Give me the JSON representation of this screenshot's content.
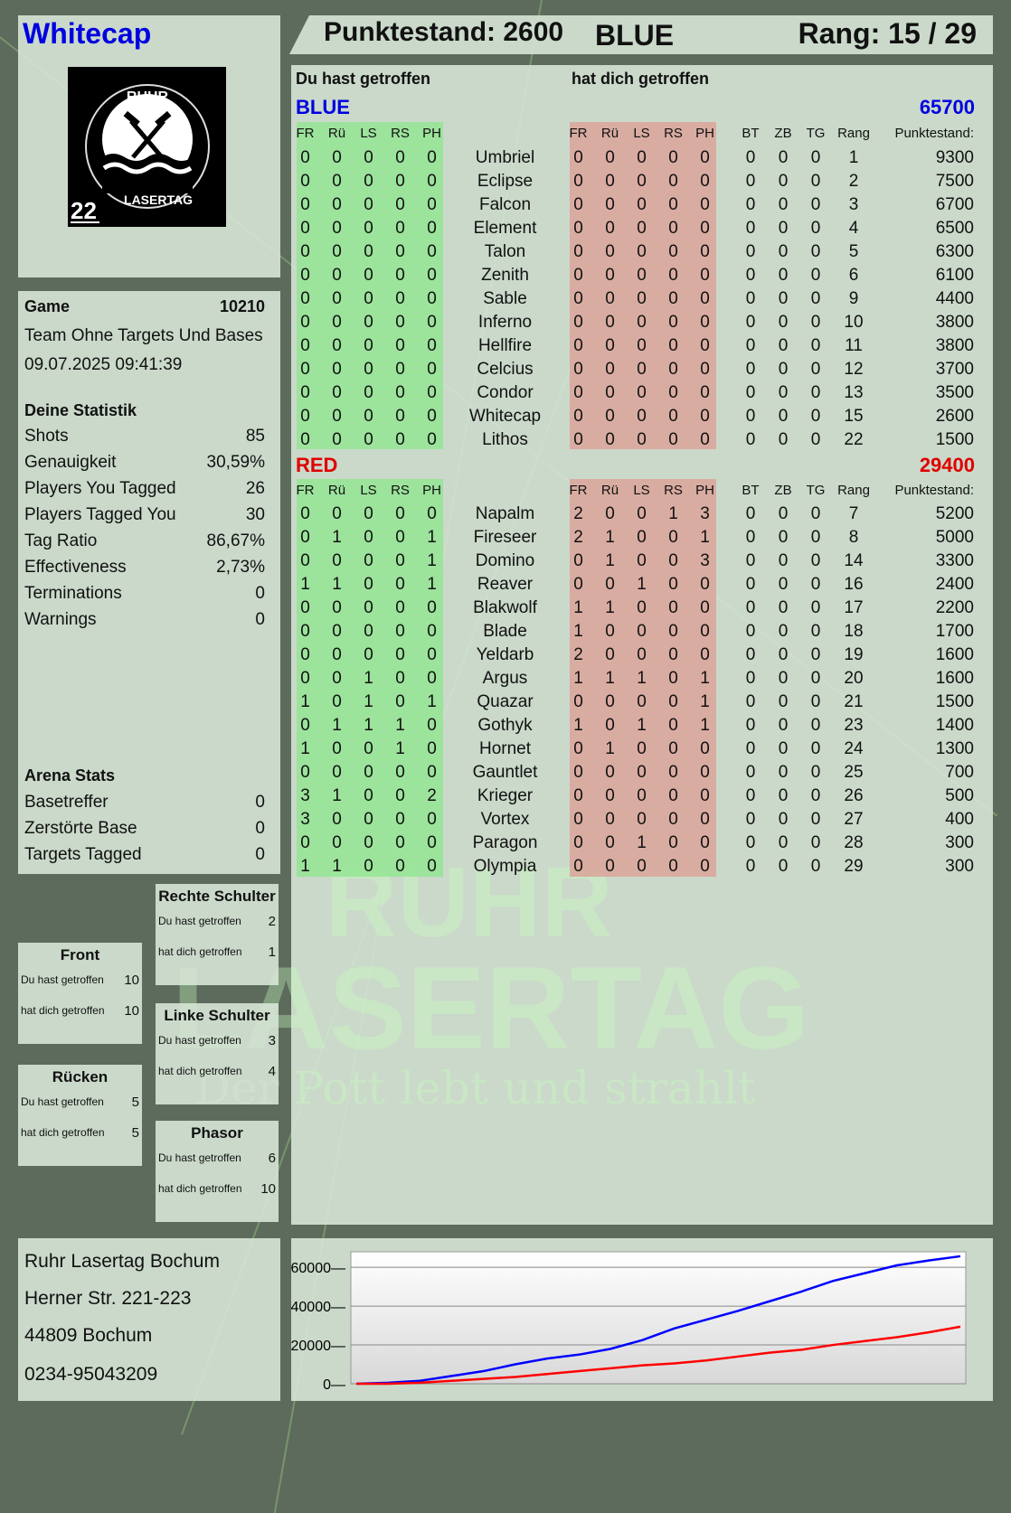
{
  "header": {
    "player_name": "Whitecap",
    "score_label": "Punktestand: 2600",
    "team": "BLUE",
    "rank_label": "Rang: 15 / 29"
  },
  "logo": {
    "text_top": "RUHR",
    "text_bottom": "LASERTAG",
    "number": "22"
  },
  "watermark": {
    "line1": "RUHR",
    "line2": "LASERTAG",
    "slogan": "Der Pott lebt und strahlt"
  },
  "table": {
    "you_hit_label": "Du hast getroffen",
    "hit_you_label": "hat dich getroffen",
    "columns": [
      "FR",
      "Rü",
      "LS",
      "RS",
      "PH",
      "",
      "FR",
      "Rü",
      "LS",
      "RS",
      "PH",
      "",
      "BT",
      "ZB",
      "TG",
      "Rang",
      "Punktestand:"
    ],
    "teams": [
      {
        "name": "BLUE",
        "total": "65700",
        "color": "#0000e0",
        "players": [
          [
            "0",
            "0",
            "0",
            "0",
            "0",
            "Umbriel",
            "0",
            "0",
            "0",
            "0",
            "0",
            "0",
            "0",
            "0",
            "1",
            "9300"
          ],
          [
            "0",
            "0",
            "0",
            "0",
            "0",
            "Eclipse",
            "0",
            "0",
            "0",
            "0",
            "0",
            "0",
            "0",
            "0",
            "2",
            "7500"
          ],
          [
            "0",
            "0",
            "0",
            "0",
            "0",
            "Falcon",
            "0",
            "0",
            "0",
            "0",
            "0",
            "0",
            "0",
            "0",
            "3",
            "6700"
          ],
          [
            "0",
            "0",
            "0",
            "0",
            "0",
            "Element",
            "0",
            "0",
            "0",
            "0",
            "0",
            "0",
            "0",
            "0",
            "4",
            "6500"
          ],
          [
            "0",
            "0",
            "0",
            "0",
            "0",
            "Talon",
            "0",
            "0",
            "0",
            "0",
            "0",
            "0",
            "0",
            "0",
            "5",
            "6300"
          ],
          [
            "0",
            "0",
            "0",
            "0",
            "0",
            "Zenith",
            "0",
            "0",
            "0",
            "0",
            "0",
            "0",
            "0",
            "0",
            "6",
            "6100"
          ],
          [
            "0",
            "0",
            "0",
            "0",
            "0",
            "Sable",
            "0",
            "0",
            "0",
            "0",
            "0",
            "0",
            "0",
            "0",
            "9",
            "4400"
          ],
          [
            "0",
            "0",
            "0",
            "0",
            "0",
            "Inferno",
            "0",
            "0",
            "0",
            "0",
            "0",
            "0",
            "0",
            "0",
            "10",
            "3800"
          ],
          [
            "0",
            "0",
            "0",
            "0",
            "0",
            "Hellfire",
            "0",
            "0",
            "0",
            "0",
            "0",
            "0",
            "0",
            "0",
            "11",
            "3800"
          ],
          [
            "0",
            "0",
            "0",
            "0",
            "0",
            "Celcius",
            "0",
            "0",
            "0",
            "0",
            "0",
            "0",
            "0",
            "0",
            "12",
            "3700"
          ],
          [
            "0",
            "0",
            "0",
            "0",
            "0",
            "Condor",
            "0",
            "0",
            "0",
            "0",
            "0",
            "0",
            "0",
            "0",
            "13",
            "3500"
          ],
          [
            "0",
            "0",
            "0",
            "0",
            "0",
            "Whitecap",
            "0",
            "0",
            "0",
            "0",
            "0",
            "0",
            "0",
            "0",
            "15",
            "2600"
          ],
          [
            "0",
            "0",
            "0",
            "0",
            "0",
            "Lithos",
            "0",
            "0",
            "0",
            "0",
            "0",
            "0",
            "0",
            "0",
            "22",
            "1500"
          ]
        ]
      },
      {
        "name": "RED",
        "total": "29400",
        "color": "#e00000",
        "players": [
          [
            "0",
            "0",
            "0",
            "0",
            "0",
            "Napalm",
            "2",
            "0",
            "0",
            "1",
            "3",
            "0",
            "0",
            "0",
            "7",
            "5200"
          ],
          [
            "0",
            "1",
            "0",
            "0",
            "1",
            "Fireseer",
            "2",
            "1",
            "0",
            "0",
            "1",
            "0",
            "0",
            "0",
            "8",
            "5000"
          ],
          [
            "0",
            "0",
            "0",
            "0",
            "1",
            "Domino",
            "0",
            "1",
            "0",
            "0",
            "3",
            "0",
            "0",
            "0",
            "14",
            "3300"
          ],
          [
            "1",
            "1",
            "0",
            "0",
            "1",
            "Reaver",
            "0",
            "0",
            "1",
            "0",
            "0",
            "0",
            "0",
            "0",
            "16",
            "2400"
          ],
          [
            "0",
            "0",
            "0",
            "0",
            "0",
            "Blakwolf",
            "1",
            "1",
            "0",
            "0",
            "0",
            "0",
            "0",
            "0",
            "17",
            "2200"
          ],
          [
            "0",
            "0",
            "0",
            "0",
            "0",
            "Blade",
            "1",
            "0",
            "0",
            "0",
            "0",
            "0",
            "0",
            "0",
            "18",
            "1700"
          ],
          [
            "0",
            "0",
            "0",
            "0",
            "0",
            "Yeldarb",
            "2",
            "0",
            "0",
            "0",
            "0",
            "0",
            "0",
            "0",
            "19",
            "1600"
          ],
          [
            "0",
            "0",
            "1",
            "0",
            "0",
            "Argus",
            "1",
            "1",
            "1",
            "0",
            "1",
            "0",
            "0",
            "0",
            "20",
            "1600"
          ],
          [
            "1",
            "0",
            "1",
            "0",
            "1",
            "Quazar",
            "0",
            "0",
            "0",
            "0",
            "1",
            "0",
            "0",
            "0",
            "21",
            "1500"
          ],
          [
            "0",
            "1",
            "1",
            "1",
            "0",
            "Gothyk",
            "1",
            "0",
            "1",
            "0",
            "1",
            "0",
            "0",
            "0",
            "23",
            "1400"
          ],
          [
            "1",
            "0",
            "0",
            "1",
            "0",
            "Hornet",
            "0",
            "1",
            "0",
            "0",
            "0",
            "0",
            "0",
            "0",
            "24",
            "1300"
          ],
          [
            "0",
            "0",
            "0",
            "0",
            "0",
            "Gauntlet",
            "0",
            "0",
            "0",
            "0",
            "0",
            "0",
            "0",
            "0",
            "25",
            "700"
          ],
          [
            "3",
            "1",
            "0",
            "0",
            "2",
            "Krieger",
            "0",
            "0",
            "0",
            "0",
            "0",
            "0",
            "0",
            "0",
            "26",
            "500"
          ],
          [
            "3",
            "0",
            "0",
            "0",
            "0",
            "Vortex",
            "0",
            "0",
            "0",
            "0",
            "0",
            "0",
            "0",
            "0",
            "27",
            "400"
          ],
          [
            "0",
            "0",
            "0",
            "0",
            "0",
            "Paragon",
            "0",
            "0",
            "1",
            "0",
            "0",
            "0",
            "0",
            "0",
            "28",
            "300"
          ],
          [
            "1",
            "1",
            "0",
            "0",
            "0",
            "Olympia",
            "0",
            "0",
            "0",
            "0",
            "0",
            "0",
            "0",
            "0",
            "29",
            "300"
          ]
        ]
      }
    ]
  },
  "game": {
    "label": "Game",
    "number": "10210",
    "mode": "Team Ohne Targets Und Bases",
    "datetime": "09.07.2025 09:41:39"
  },
  "stats": {
    "title": "Deine Statistik",
    "items": [
      {
        "label": "Shots",
        "value": "85"
      },
      {
        "label": "Genauigkeit",
        "value": "30,59%"
      },
      {
        "label": "Players You Tagged",
        "value": "26"
      },
      {
        "label": "Players Tagged You",
        "value": "30"
      },
      {
        "label": "Tag Ratio",
        "value": "86,67%"
      },
      {
        "label": "Effectiveness",
        "value": "2,73%"
      },
      {
        "label": "Terminations",
        "value": "0"
      },
      {
        "label": "Warnings",
        "value": "0"
      }
    ]
  },
  "arena": {
    "title": "Arena Stats",
    "items": [
      {
        "label": "Basetreffer",
        "value": "0"
      },
      {
        "label": "Zerstörte Base",
        "value": "0"
      },
      {
        "label": "Targets Tagged",
        "value": "0"
      }
    ]
  },
  "zones": [
    {
      "name": "Rechte Schulter",
      "you_hit": "2",
      "hit_you": "1"
    },
    {
      "name": "Front",
      "you_hit": "10",
      "hit_you": "10"
    },
    {
      "name": "Linke Schulter",
      "you_hit": "3",
      "hit_you": "4"
    },
    {
      "name": "Rücken",
      "you_hit": "5",
      "hit_you": "5"
    },
    {
      "name": "Phasor",
      "you_hit": "6",
      "hit_you": "10"
    }
  ],
  "zone_labels": {
    "you_hit": "Du hast getroffen",
    "hit_you": "hat dich getroffen"
  },
  "address": {
    "lines": [
      "Ruhr Lasertag Bochum",
      "Herner Str. 221-223",
      "44809 Bochum",
      "0234-95043209"
    ]
  },
  "chart_data": {
    "type": "line",
    "ylim": [
      0,
      68000
    ],
    "yticks": [
      "0",
      "20000",
      "40000",
      "60000"
    ],
    "grid": true,
    "series": [
      {
        "color": "#0000ff",
        "values": [
          0,
          500,
          1500,
          4000,
          6500,
          10000,
          13000,
          15000,
          18000,
          22500,
          28500,
          33000,
          37500,
          42500,
          47500,
          53000,
          57000,
          61000,
          63500,
          65700
        ]
      },
      {
        "color": "#ff0000",
        "values": [
          0,
          0,
          500,
          1500,
          2500,
          3500,
          5000,
          6500,
          8000,
          9500,
          10500,
          12000,
          14000,
          16000,
          17500,
          20000,
          22000,
          24000,
          26500,
          29400
        ]
      }
    ]
  }
}
